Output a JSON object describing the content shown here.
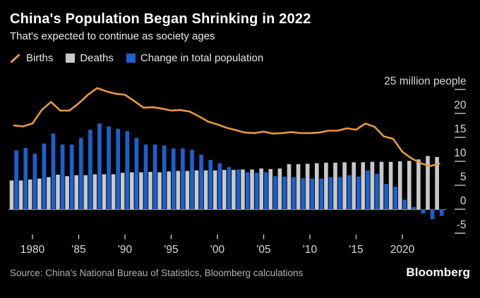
{
  "header": {
    "title": "China's Population Began Shrinking in 2022",
    "subtitle": "That's expected to continue as society ages"
  },
  "legend": {
    "births_label": "Births",
    "deaths_label": "Deaths",
    "change_label": "Change in total population"
  },
  "footer": {
    "source": "Source: China's National Bureau of Statistics, Bloomberg calculations",
    "brand": "Bloomberg"
  },
  "colors": {
    "background": "#000000",
    "births_line": "#e9983d",
    "deaths_bar": "#c9c9c9",
    "change_bar": "#1b61cf",
    "axis_text": "#d9d9d9",
    "tick_mark": "#c7c7c7",
    "zero_line": "#8a8a8a"
  },
  "chart_data": {
    "type": "bar+line combo",
    "unit": "million people",
    "title": "China's Population Began Shrinking in 2022",
    "subtitle": "That's expected to continue as society ages",
    "legend_position": "top-left",
    "grid": false,
    "x": [
      1978,
      1979,
      1980,
      1981,
      1982,
      1983,
      1984,
      1985,
      1986,
      1987,
      1988,
      1989,
      1990,
      1991,
      1992,
      1993,
      1994,
      1995,
      1996,
      1997,
      1998,
      1999,
      2000,
      2001,
      2002,
      2003,
      2004,
      2005,
      2006,
      2007,
      2008,
      2009,
      2010,
      2011,
      2012,
      2013,
      2014,
      2015,
      2016,
      2017,
      2018,
      2019,
      2020,
      2021,
      2022,
      2023,
      2024
    ],
    "series": [
      {
        "name": "Births",
        "type": "line",
        "color_key": "births_line",
        "values": [
          17.5,
          17.3,
          17.9,
          20.7,
          22.4,
          20.6,
          20.6,
          22.1,
          23.9,
          25.3,
          24.6,
          24.1,
          23.9,
          22.6,
          21.2,
          21.3,
          21.0,
          20.6,
          20.7,
          20.4,
          19.4,
          18.3,
          17.7,
          17.0,
          16.5,
          16.0,
          15.9,
          16.2,
          15.8,
          15.9,
          16.1,
          15.9,
          15.9,
          16.0,
          16.4,
          16.4,
          16.9,
          16.6,
          17.9,
          17.2,
          15.2,
          14.7,
          12.0,
          10.6,
          9.6,
          9.0,
          9.5
        ]
      },
      {
        "name": "Deaths",
        "type": "bar",
        "color_key": "deaths_bar",
        "values": [
          6.0,
          6.0,
          6.2,
          6.4,
          6.7,
          7.2,
          6.9,
          7.1,
          7.1,
          7.3,
          7.3,
          7.3,
          7.6,
          7.7,
          7.7,
          7.8,
          7.7,
          7.9,
          8.0,
          8.0,
          8.1,
          8.1,
          8.1,
          8.2,
          8.2,
          8.3,
          8.3,
          8.5,
          8.4,
          8.5,
          9.4,
          9.4,
          9.5,
          9.6,
          9.7,
          9.7,
          9.8,
          9.8,
          9.8,
          9.9,
          9.9,
          9.9,
          10.0,
          10.1,
          10.4,
          11.1,
          10.9
        ]
      },
      {
        "name": "Change in total population",
        "type": "bar",
        "color_key": "change_bar",
        "values": [
          12.3,
          12.8,
          11.6,
          13.7,
          15.8,
          13.5,
          13.5,
          14.9,
          16.6,
          17.9,
          17.3,
          16.8,
          16.3,
          14.9,
          13.5,
          13.5,
          13.3,
          12.7,
          12.7,
          12.4,
          11.4,
          10.3,
          9.6,
          8.8,
          8.3,
          7.7,
          7.6,
          7.7,
          6.9,
          6.8,
          6.7,
          6.5,
          6.4,
          6.4,
          6.7,
          6.7,
          7.1,
          6.8,
          8.1,
          7.4,
          5.3,
          4.7,
          2.0,
          0.5,
          -0.9,
          -2.1,
          -1.4
        ]
      }
    ],
    "y_axis": {
      "side": "right",
      "range": [
        -5,
        25
      ],
      "ticks": [
        {
          "v": 25,
          "label": "25 million people"
        },
        {
          "v": 20,
          "label": "20"
        },
        {
          "v": 15,
          "label": "15"
        },
        {
          "v": 10,
          "label": "10"
        },
        {
          "v": 5,
          "label": "5"
        },
        {
          "v": 0,
          "label": "0"
        },
        {
          "v": -5,
          "label": "-5"
        }
      ]
    },
    "x_axis": {
      "ticks": [
        {
          "v": 1980,
          "label": "1980"
        },
        {
          "v": 1985,
          "label": "'85"
        },
        {
          "v": 1990,
          "label": "'90"
        },
        {
          "v": 1995,
          "label": "'95"
        },
        {
          "v": 2000,
          "label": "'00"
        },
        {
          "v": 2005,
          "label": "'05"
        },
        {
          "v": 2010,
          "label": "'10"
        },
        {
          "v": 2015,
          "label": "'15"
        },
        {
          "v": 2020,
          "label": "2020"
        }
      ]
    }
  }
}
